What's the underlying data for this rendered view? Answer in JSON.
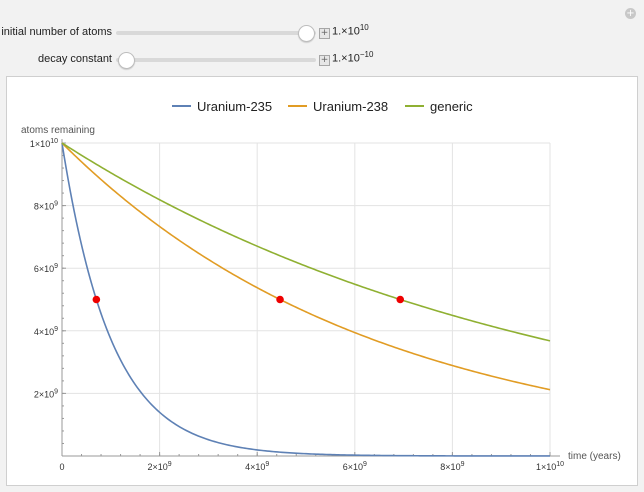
{
  "controls": [
    {
      "label": "initial number of atoms",
      "value_base": "1.×10",
      "value_exp": "10",
      "slider_fraction": 0.95
    },
    {
      "label": "decay constant",
      "value_base": "1.×10",
      "value_exp": "−10",
      "slider_fraction": 0.05
    }
  ],
  "chart_data": {
    "type": "line",
    "xlabel": "time (years)",
    "ylabel": "atoms remaining",
    "xlim": [
      0,
      10000000000
    ],
    "ylim": [
      0,
      10000000000
    ],
    "x_ticks": [
      {
        "value": 0,
        "base": "0",
        "exp": ""
      },
      {
        "value": 2000000000,
        "base": "2×10",
        "exp": "9"
      },
      {
        "value": 4000000000,
        "base": "4×10",
        "exp": "9"
      },
      {
        "value": 6000000000,
        "base": "6×10",
        "exp": "9"
      },
      {
        "value": 8000000000,
        "base": "8×10",
        "exp": "9"
      },
      {
        "value": 10000000000,
        "base": "1×10",
        "exp": "10"
      }
    ],
    "y_ticks": [
      {
        "value": 2000000000,
        "base": "2×10",
        "exp": "9"
      },
      {
        "value": 4000000000,
        "base": "4×10",
        "exp": "9"
      },
      {
        "value": 6000000000,
        "base": "6×10",
        "exp": "9"
      },
      {
        "value": 8000000000,
        "base": "8×10",
        "exp": "9"
      },
      {
        "value": 10000000000,
        "base": "1×10",
        "exp": "10"
      }
    ],
    "legend_position": "top-center",
    "grid": true,
    "series": [
      {
        "name": "Uranium-235",
        "color": "#5e81b5",
        "initial": 10000000000,
        "half_life": 704000000
      },
      {
        "name": "Uranium-238",
        "color": "#e19c24",
        "initial": 10000000000,
        "half_life": 4468000000
      },
      {
        "name": "generic",
        "color": "#8fb032",
        "initial": 10000000000,
        "half_life": 6931000000
      }
    ],
    "half_life_points": [
      {
        "x": 704000000,
        "y": 5000000000
      },
      {
        "x": 4468000000,
        "y": 5000000000
      },
      {
        "x": 6931000000,
        "y": 5000000000
      }
    ],
    "marker_color": "#ee0000"
  }
}
